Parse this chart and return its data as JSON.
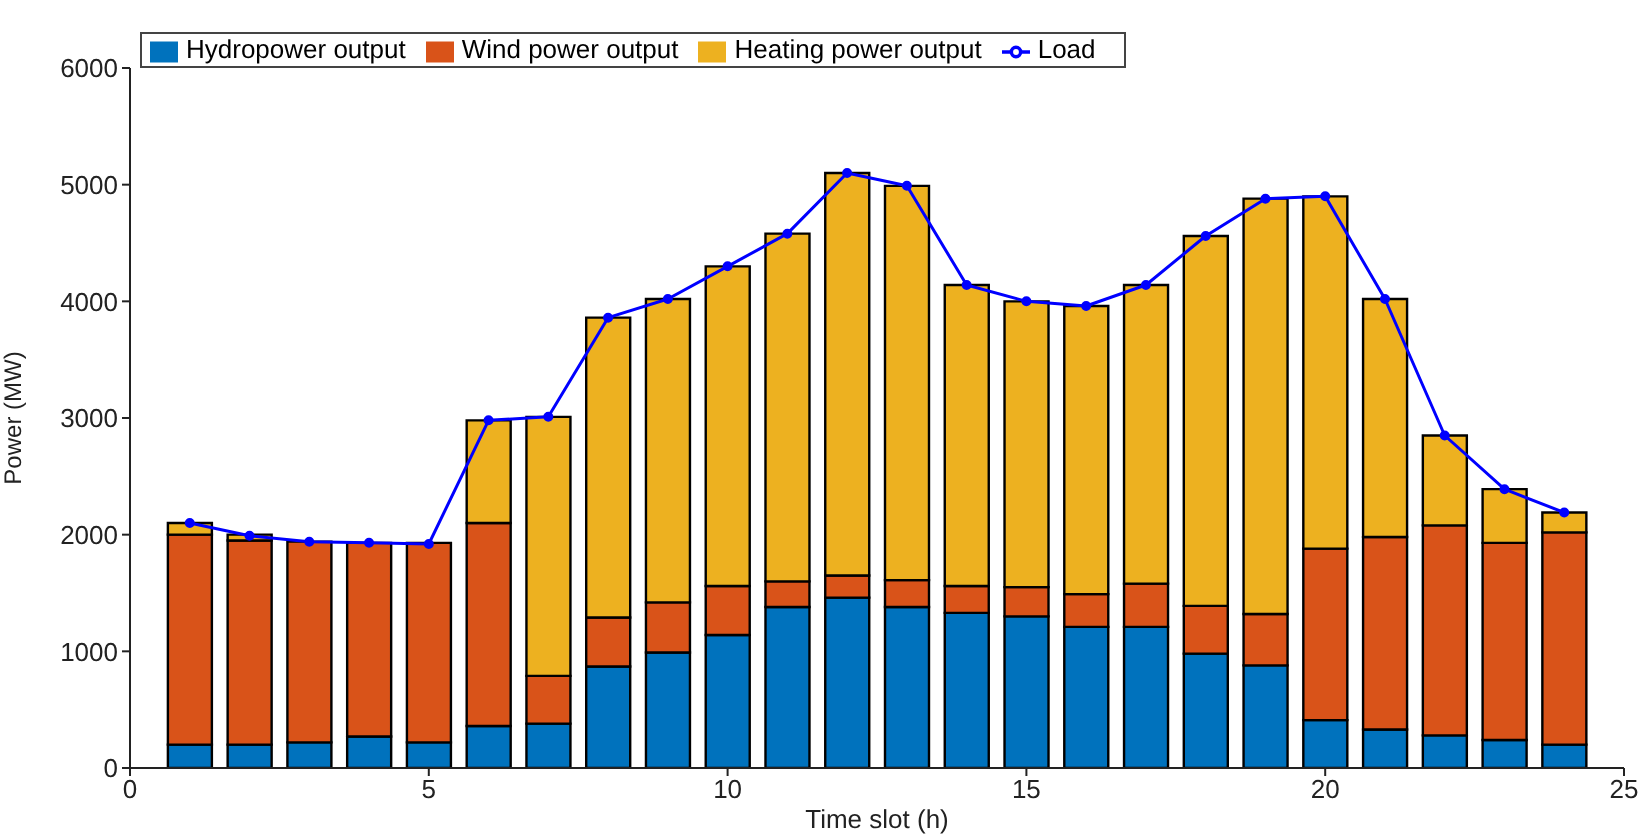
{
  "chart_data": {
    "type": "bar",
    "stacked": true,
    "xlabel": "Time slot (h)",
    "ylabel": "Power (MW)",
    "legend": "top left",
    "marker": "circle",
    "x": [
      1,
      2,
      3,
      4,
      5,
      6,
      7,
      8,
      9,
      10,
      11,
      12,
      13,
      14,
      15,
      16,
      17,
      18,
      19,
      20,
      21,
      22,
      23,
      24
    ],
    "xlim": [
      0,
      25
    ],
    "xticks": [
      0,
      5,
      10,
      15,
      20,
      25
    ],
    "ylim": [
      0,
      6000
    ],
    "yticks": [
      0,
      1000,
      2000,
      3000,
      4000,
      5000,
      6000
    ],
    "series": [
      {
        "name": "Hydropower output",
        "color": "#0072bd",
        "values": [
          200,
          200,
          220,
          270,
          220,
          360,
          380,
          870,
          990,
          1140,
          1380,
          1460,
          1380,
          1330,
          1300,
          1210,
          1210,
          980,
          880,
          410,
          330,
          280,
          240,
          200
        ]
      },
      {
        "name": "Wind power output",
        "color": "#d95319",
        "values": [
          1800,
          1750,
          1720,
          1660,
          1710,
          1740,
          410,
          420,
          430,
          420,
          220,
          190,
          230,
          230,
          250,
          280,
          370,
          410,
          440,
          1470,
          1650,
          1800,
          1690,
          1820
        ]
      },
      {
        "name": "Heating power output",
        "color": "#edb120",
        "values": [
          100,
          50,
          0,
          0,
          0,
          880,
          2220,
          2570,
          2600,
          2740,
          2980,
          3450,
          3380,
          2580,
          2450,
          2470,
          2560,
          3170,
          3560,
          3020,
          2040,
          770,
          460,
          170
        ]
      },
      {
        "name": "Load",
        "type": "line",
        "color": "#0000ff",
        "values": [
          2100,
          1990,
          1940,
          1930,
          1920,
          2980,
          3010,
          3860,
          4020,
          4300,
          4580,
          5100,
          4990,
          4140,
          4000,
          3960,
          4140,
          4560,
          4880,
          4900,
          4020,
          2850,
          2390,
          2190
        ]
      }
    ]
  }
}
